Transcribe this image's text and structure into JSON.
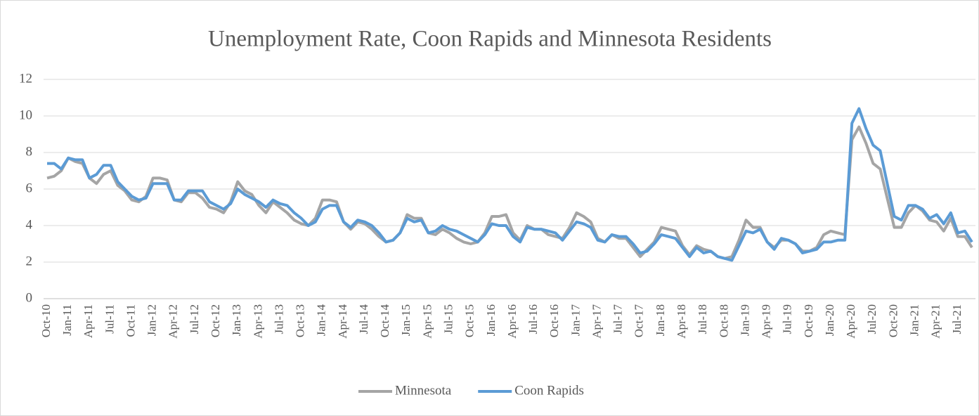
{
  "chart_data": {
    "type": "line",
    "title": "Unemployment Rate, Coon Rapids and Minnesota Residents",
    "categories": [
      "Oct-10",
      null,
      null,
      "Jan-11",
      null,
      null,
      "Apr-11",
      null,
      null,
      "Jul-11",
      null,
      null,
      "Oct-11",
      null,
      null,
      "Jan-12",
      null,
      null,
      "Apr-12",
      null,
      null,
      "Jul-12",
      null,
      null,
      "Oct-12",
      null,
      null,
      "Jan-13",
      null,
      null,
      "Apr-13",
      null,
      null,
      "Jul-13",
      null,
      null,
      "Oct-13",
      null,
      null,
      "Jan-14",
      null,
      null,
      "Apr-14",
      null,
      null,
      "Jul-14",
      null,
      null,
      "Oct-14",
      null,
      null,
      "Jan-15",
      null,
      null,
      "Apr-15",
      null,
      null,
      "Jul-15",
      null,
      null,
      "Oct-15",
      null,
      null,
      "Jan-16",
      null,
      null,
      "Apr-16",
      null,
      null,
      "Jul-16",
      null,
      null,
      "Oct-16",
      null,
      null,
      "Jan-17",
      null,
      null,
      "Apr-17",
      null,
      null,
      "Jul-17",
      null,
      null,
      "Oct-17",
      null,
      null,
      "Jan-18",
      null,
      null,
      "Apr-18",
      null,
      null,
      "Jul-18",
      null,
      null,
      "Oct-18",
      null,
      null,
      "Jan-19",
      null,
      null,
      "Apr-19",
      null,
      null,
      "Jul-19",
      null,
      null,
      "Oct-19",
      null,
      null,
      "Jan-20",
      null,
      null,
      "Apr-20",
      null,
      null,
      "Jul-20",
      null,
      null,
      "Oct-20",
      null,
      null,
      "Jan-21",
      null,
      null,
      "Apr-21",
      null,
      null,
      "Jul-21",
      null,
      null
    ],
    "series": [
      {
        "name": "Minnesota",
        "color": "#a5a5a5",
        "values": [
          6.6,
          6.7,
          7.0,
          7.7,
          7.5,
          7.4,
          6.6,
          6.3,
          6.8,
          7.0,
          6.2,
          5.9,
          5.4,
          5.3,
          5.6,
          6.6,
          6.6,
          6.5,
          5.4,
          5.3,
          5.8,
          5.8,
          5.5,
          5.0,
          4.9,
          4.7,
          5.3,
          6.4,
          5.9,
          5.7,
          5.1,
          4.7,
          5.3,
          5.0,
          4.7,
          4.3,
          4.1,
          4.0,
          4.4,
          5.4,
          5.4,
          5.3,
          4.2,
          3.8,
          4.2,
          4.1,
          3.8,
          3.4,
          3.1,
          3.2,
          3.6,
          4.6,
          4.4,
          4.4,
          3.6,
          3.5,
          3.8,
          3.6,
          3.3,
          3.1,
          3.0,
          3.1,
          3.6,
          4.5,
          4.5,
          4.6,
          3.6,
          3.2,
          4.0,
          3.8,
          3.8,
          3.5,
          3.4,
          3.3,
          3.9,
          4.7,
          4.5,
          4.2,
          3.3,
          3.1,
          3.5,
          3.3,
          3.3,
          2.8,
          2.3,
          2.7,
          3.1,
          3.9,
          3.8,
          3.7,
          2.9,
          2.4,
          2.9,
          2.7,
          2.6,
          2.3,
          2.2,
          2.3,
          3.2,
          4.3,
          3.9,
          3.9,
          3.1,
          2.8,
          3.2,
          3.2,
          3.0,
          2.6,
          2.6,
          2.8,
          3.5,
          3.7,
          3.6,
          3.5,
          8.7,
          9.4,
          8.5,
          7.4,
          7.1,
          5.5,
          3.9,
          3.9,
          4.7,
          5.1,
          4.8,
          4.3,
          4.2,
          3.7,
          4.4,
          3.4,
          3.4,
          2.8
        ]
      },
      {
        "name": "Coon Rapids",
        "color": "#5b9bd5",
        "values": [
          7.4,
          7.4,
          7.1,
          7.7,
          7.6,
          7.6,
          6.6,
          6.8,
          7.3,
          7.3,
          6.4,
          6.0,
          5.6,
          5.4,
          5.5,
          6.3,
          6.3,
          6.3,
          5.4,
          5.4,
          5.9,
          5.9,
          5.9,
          5.3,
          5.1,
          4.9,
          5.2,
          6.0,
          5.7,
          5.5,
          5.3,
          5.0,
          5.4,
          5.2,
          5.1,
          4.7,
          4.4,
          4.0,
          4.2,
          4.9,
          5.1,
          5.1,
          4.2,
          3.9,
          4.3,
          4.2,
          4.0,
          3.6,
          3.1,
          3.2,
          3.6,
          4.4,
          4.2,
          4.3,
          3.6,
          3.7,
          4.0,
          3.8,
          3.7,
          3.5,
          3.3,
          3.1,
          3.5,
          4.1,
          4.0,
          4.0,
          3.4,
          3.1,
          3.9,
          3.8,
          3.8,
          3.7,
          3.6,
          3.2,
          3.7,
          4.2,
          4.1,
          3.9,
          3.2,
          3.1,
          3.5,
          3.4,
          3.4,
          3.0,
          2.5,
          2.6,
          3.0,
          3.5,
          3.4,
          3.3,
          2.8,
          2.3,
          2.8,
          2.5,
          2.6,
          2.3,
          2.2,
          2.1,
          2.9,
          3.7,
          3.6,
          3.8,
          3.1,
          2.7,
          3.3,
          3.2,
          3.0,
          2.5,
          2.6,
          2.7,
          3.1,
          3.1,
          3.2,
          3.2,
          9.6,
          10.4,
          9.3,
          8.4,
          8.1,
          6.3,
          4.5,
          4.3,
          5.1,
          5.1,
          4.9,
          4.4,
          4.6,
          4.1,
          4.7,
          3.6,
          3.7,
          3.1
        ]
      }
    ],
    "ylim": [
      0,
      12
    ],
    "yticks": [
      0,
      2,
      4,
      6,
      8,
      10,
      12
    ],
    "grid": true,
    "legend": "bottom"
  }
}
